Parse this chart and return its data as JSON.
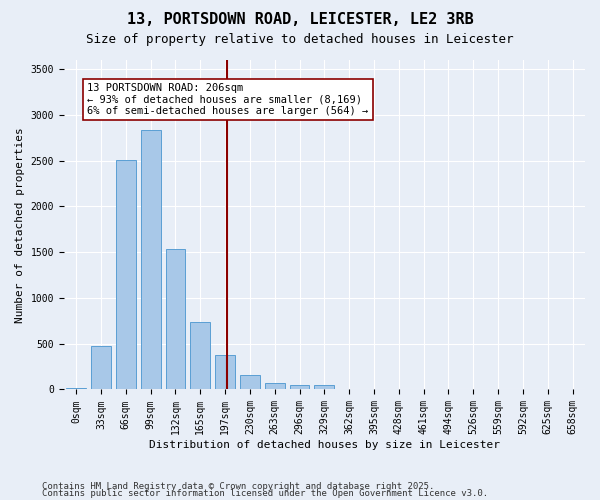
{
  "title": "13, PORTSDOWN ROAD, LEICESTER, LE2 3RB",
  "subtitle": "Size of property relative to detached houses in Leicester",
  "xlabel": "Distribution of detached houses by size in Leicester",
  "ylabel": "Number of detached properties",
  "bins": [
    "0sqm",
    "33sqm",
    "66sqm",
    "99sqm",
    "132sqm",
    "165sqm",
    "197sqm",
    "230sqm",
    "263sqm",
    "296sqm",
    "329sqm",
    "362sqm",
    "395sqm",
    "428sqm",
    "461sqm",
    "494sqm",
    "526sqm",
    "559sqm",
    "592sqm",
    "625sqm",
    "658sqm"
  ],
  "values": [
    20,
    480,
    2510,
    2840,
    1530,
    740,
    380,
    155,
    70,
    50,
    45,
    5,
    0,
    0,
    0,
    0,
    0,
    0,
    0,
    0,
    0
  ],
  "bar_color": "#a8c8e8",
  "bar_edge_color": "#5a9fd4",
  "vline_x": 6.06,
  "vline_color": "#8b0000",
  "annotation_text": "13 PORTSDOWN ROAD: 206sqm\n← 93% of detached houses are smaller (8,169)\n6% of semi-detached houses are larger (564) →",
  "annotation_box_color": "#ffffff",
  "annotation_box_edge": "#8b0000",
  "ylim": [
    0,
    3600
  ],
  "yticks": [
    0,
    500,
    1000,
    1500,
    2000,
    2500,
    3000,
    3500
  ],
  "background_color": "#e8eef7",
  "grid_color": "#ffffff",
  "footer1": "Contains HM Land Registry data © Crown copyright and database right 2025.",
  "footer2": "Contains public sector information licensed under the Open Government Licence v3.0.",
  "title_fontsize": 11,
  "subtitle_fontsize": 9,
  "axis_label_fontsize": 8,
  "tick_fontsize": 7,
  "annotation_fontsize": 7.5,
  "footer_fontsize": 6.5
}
